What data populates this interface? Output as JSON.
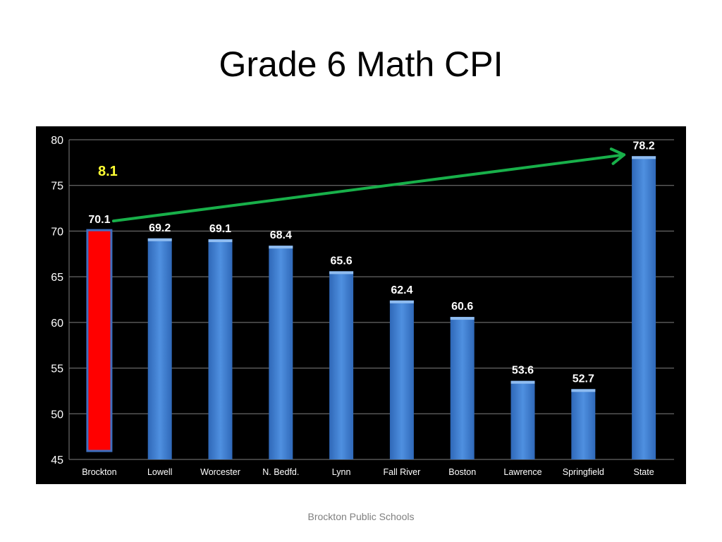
{
  "slide": {
    "title": "Grade 6 Math CPI",
    "footer": "Brockton Public Schools"
  },
  "chart_data": {
    "type": "bar",
    "title": "Grade 6 Math CPI",
    "categories": [
      "Brockton",
      "Lowell",
      "Worcester",
      "N.  Bedfd.",
      "Lynn",
      "Fall River",
      "Boston",
      "Lawrence",
      "Springfield",
      "State"
    ],
    "values": [
      70.1,
      69.2,
      69.1,
      68.4,
      65.6,
      62.4,
      60.6,
      53.6,
      52.7,
      78.2
    ],
    "value_labels": [
      "70.1",
      "69.2",
      "69.1",
      "68.4",
      "65.6",
      "62.4",
      "60.6",
      "53.6",
      "52.7",
      "78.2"
    ],
    "ylim": [
      45,
      80
    ],
    "yticks": [
      45,
      50,
      55,
      60,
      65,
      70,
      75,
      80
    ],
    "ytick_labels": [
      "45",
      "50",
      "55",
      "60",
      "65",
      "70",
      "75",
      "80"
    ],
    "grid": true,
    "legend": "none",
    "highlight_index": 0,
    "colors": {
      "background": "#000000",
      "bar": "#3f7fd2",
      "highlight_bar": "#ff0000",
      "highlight_border": "#3f6fc0",
      "arrow": "#18b04a",
      "annotation": "#ffff33",
      "text": "#ffffff",
      "gridline": "#7f7f7f"
    },
    "annotation": {
      "label": "8.1",
      "from_category": "Brockton",
      "to_category": "State",
      "arrow_icon": "arrow-right-icon"
    }
  }
}
